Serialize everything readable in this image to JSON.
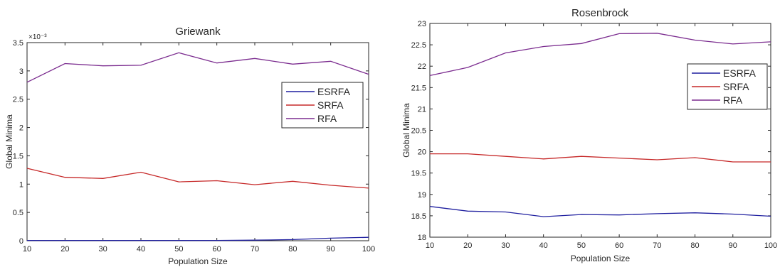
{
  "chart_data": [
    {
      "type": "line",
      "title": "Griewank",
      "xlabel": "Population Size",
      "ylabel": "Global Minima",
      "y_exponent_label": "×10⁻³",
      "x": [
        10,
        20,
        30,
        40,
        50,
        60,
        70,
        80,
        90,
        100
      ],
      "xlim": [
        10,
        100
      ],
      "ylim": [
        0,
        3.5
      ],
      "xticks": [
        "10",
        "20",
        "30",
        "40",
        "50",
        "60",
        "70",
        "80",
        "90",
        "100"
      ],
      "yticks": [
        "0",
        "0.5",
        "1",
        "1.5",
        "2",
        "2.5",
        "3",
        "3.5"
      ],
      "legend_position": "right-middle",
      "grid": false,
      "series": [
        {
          "name": "ESRFA",
          "color": "#1f1f9f",
          "values": [
            0.005,
            0.005,
            0.005,
            0.005,
            0.005,
            0.005,
            0.01,
            0.02,
            0.045,
            0.06
          ]
        },
        {
          "name": "SRFA",
          "color": "#c62828",
          "values": [
            1.28,
            1.12,
            1.1,
            1.21,
            1.04,
            1.06,
            0.99,
            1.05,
            0.98,
            0.93
          ]
        },
        {
          "name": "RFA",
          "color": "#7b2c8f",
          "values": [
            2.8,
            3.13,
            3.09,
            3.1,
            3.32,
            3.14,
            3.22,
            3.12,
            3.17,
            2.94
          ]
        }
      ]
    },
    {
      "type": "line",
      "title": "Rosenbrock",
      "xlabel": "Population Size",
      "ylabel": "Global Minima",
      "x": [
        10,
        20,
        30,
        40,
        50,
        60,
        70,
        80,
        90,
        100
      ],
      "xlim": [
        10,
        100
      ],
      "ylim": [
        18,
        23
      ],
      "xticks": [
        "10",
        "20",
        "30",
        "40",
        "50",
        "60",
        "70",
        "80",
        "90",
        "100"
      ],
      "yticks": [
        "18",
        "18.5",
        "19",
        "19.5",
        "20",
        "20.5",
        "21",
        "21.5",
        "22",
        "22.5",
        "23"
      ],
      "legend_position": "top-right",
      "grid": false,
      "series": [
        {
          "name": "ESRFA",
          "color": "#1f1f9f",
          "values": [
            18.72,
            18.61,
            18.59,
            18.48,
            18.53,
            18.52,
            18.55,
            18.57,
            18.54,
            18.49
          ]
        },
        {
          "name": "SRFA",
          "color": "#c62828",
          "values": [
            19.95,
            19.95,
            19.89,
            19.83,
            19.89,
            19.85,
            19.81,
            19.86,
            19.76,
            19.76
          ]
        },
        {
          "name": "RFA",
          "color": "#7b2c8f",
          "values": [
            21.78,
            21.97,
            22.31,
            22.46,
            22.53,
            22.76,
            22.77,
            22.61,
            22.52,
            22.57
          ]
        }
      ]
    }
  ]
}
